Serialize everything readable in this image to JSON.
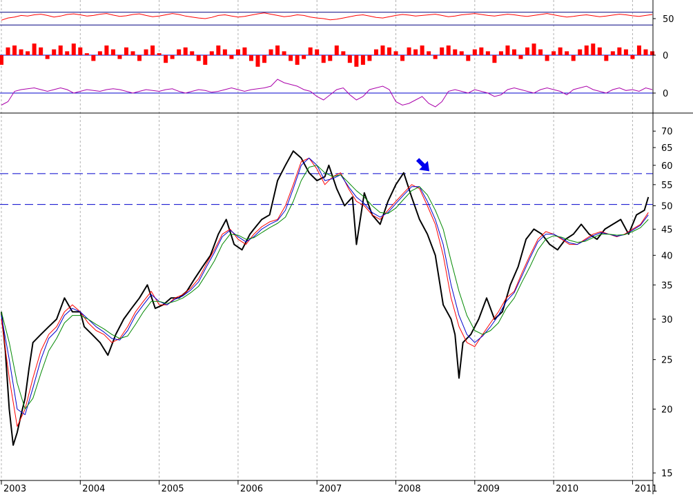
{
  "chart_data": {
    "type": "line",
    "panels": [
      {
        "name": "oscillator-1",
        "color": "#ff0000",
        "ref_lines": [
          30,
          70
        ],
        "ylim": [
          0,
          100
        ],
        "tick_label": "50",
        "values": [
          45,
          52,
          55,
          60,
          58,
          62,
          64,
          60,
          55,
          58,
          63,
          65,
          62,
          58,
          60,
          64,
          66,
          61,
          57,
          59,
          63,
          65,
          60,
          56,
          58,
          62,
          66,
          63,
          58,
          55,
          52,
          50,
          54,
          60,
          62,
          58,
          55,
          57,
          61,
          65,
          68,
          64,
          60,
          56,
          58,
          62,
          60,
          55,
          52,
          50,
          46,
          48,
          52,
          56,
          60,
          62,
          58,
          54,
          52,
          56,
          60,
          63,
          61,
          58,
          60,
          62,
          64,
          60,
          56,
          58,
          62,
          64,
          66,
          63,
          60,
          58,
          61,
          64,
          62,
          59,
          57,
          60,
          63,
          66,
          62,
          58,
          55,
          57,
          60,
          62,
          59,
          56,
          58,
          61,
          64,
          62,
          59,
          57,
          60,
          63
        ]
      },
      {
        "name": "histogram",
        "color": "#ff0000",
        "tick_label": "0",
        "ylim": [
          -1,
          1
        ],
        "values": [
          -0.5,
          0.4,
          0.5,
          0.3,
          0.2,
          0.6,
          0.4,
          -0.2,
          0.3,
          0.5,
          0.2,
          0.6,
          0.4,
          0.1,
          -0.3,
          0.2,
          0.5,
          0.3,
          -0.2,
          0.4,
          0.2,
          -0.3,
          0.3,
          0.5,
          0.1,
          -0.4,
          -0.2,
          0.3,
          0.4,
          0.2,
          -0.3,
          -0.5,
          0.2,
          0.5,
          0.3,
          -0.2,
          0.3,
          0.4,
          -0.3,
          -0.6,
          -0.4,
          0.3,
          0.5,
          0.2,
          -0.3,
          -0.5,
          -0.2,
          0.4,
          0.3,
          -0.4,
          -0.3,
          0.5,
          0.2,
          -0.4,
          -0.6,
          -0.5,
          -0.3,
          0.3,
          0.5,
          0.4,
          0.2,
          -0.3,
          0.4,
          0.3,
          0.5,
          0.2,
          -0.2,
          0.4,
          0.5,
          0.3,
          0.2,
          -0.3,
          0.3,
          0.4,
          0.2,
          -0.4,
          0.2,
          0.5,
          0.3,
          -0.2,
          0.4,
          0.6,
          0.3,
          -0.3,
          0.2,
          0.4,
          0.2,
          -0.3,
          0.3,
          0.5,
          0.6,
          0.4,
          -0.3,
          0.2,
          0.4,
          0.3,
          -0.2,
          0.5,
          0.3,
          0.2
        ]
      },
      {
        "name": "oscillator-2",
        "color": "#aa00aa",
        "ref_line": 0,
        "tick_label": "0",
        "ylim": [
          -1,
          1
        ],
        "values": [
          -0.7,
          -0.5,
          0.1,
          0.2,
          0.25,
          0.3,
          0.2,
          0.1,
          0.2,
          0.3,
          0.2,
          0.0,
          0.1,
          0.2,
          0.15,
          0.1,
          0.2,
          0.25,
          0.2,
          0.1,
          0.0,
          0.1,
          0.2,
          0.15,
          0.1,
          0.2,
          0.25,
          0.1,
          0.0,
          0.1,
          0.2,
          0.15,
          0.05,
          0.1,
          0.2,
          0.3,
          0.2,
          0.1,
          0.2,
          0.25,
          0.3,
          0.4,
          0.8,
          0.6,
          0.5,
          0.4,
          0.2,
          0.1,
          -0.2,
          -0.4,
          -0.1,
          0.2,
          0.3,
          -0.1,
          -0.4,
          -0.2,
          0.2,
          0.3,
          0.4,
          0.2,
          -0.5,
          -0.7,
          -0.6,
          -0.4,
          -0.2,
          -0.6,
          -0.8,
          -0.5,
          0.1,
          0.2,
          0.1,
          0.0,
          0.2,
          0.1,
          0.0,
          -0.2,
          -0.1,
          0.2,
          0.3,
          0.2,
          0.1,
          0.0,
          0.2,
          0.3,
          0.2,
          0.1,
          -0.1,
          0.2,
          0.3,
          0.4,
          0.2,
          0.1,
          0.0,
          0.2,
          0.3,
          0.15,
          0.2,
          0.1,
          0.3,
          0.2
        ]
      }
    ],
    "main": {
      "scale": "log",
      "ylim": [
        14.5,
        75
      ],
      "y_ticks": [
        15,
        20,
        25,
        30,
        35,
        40,
        45,
        50,
        55,
        60,
        65,
        70
      ],
      "x_ticks": [
        "2003",
        "2004",
        "2005",
        "2006",
        "2007",
        "2008",
        "2009",
        "2010",
        "2011"
      ],
      "x_range": [
        2003.0,
        2011.25
      ],
      "grid": "vertical dashed at year boundaries",
      "ref_lines": [
        {
          "value": 57.8,
          "style": "dashed",
          "color": "#0000cc"
        },
        {
          "value": 50.3,
          "style": "dashed",
          "color": "#0000cc"
        }
      ],
      "arrow": {
        "x": 2008.35,
        "y": 60,
        "color": "#0000ee"
      },
      "series": [
        {
          "color": "#000000",
          "x": [
            2003.0,
            2003.05,
            2003.1,
            2003.15,
            2003.2,
            2003.25,
            2003.3,
            2003.35,
            2003.4,
            2003.5,
            2003.6,
            2003.7,
            2003.8,
            2003.9,
            2004.0,
            2004.05,
            2004.15,
            2004.25,
            2004.35,
            2004.45,
            2004.55,
            2004.65,
            2004.75,
            2004.85,
            2004.95,
            2005.05,
            2005.15,
            2005.25,
            2005.35,
            2005.45,
            2005.55,
            2005.65,
            2005.75,
            2005.85,
            2005.95,
            2006.05,
            2006.15,
            2006.2,
            2006.3,
            2006.4,
            2006.5,
            2006.6,
            2006.7,
            2006.8,
            2006.9,
            2007.0,
            2007.1,
            2007.15,
            2007.25,
            2007.35,
            2007.45,
            2007.5,
            2007.6,
            2007.7,
            2007.8,
            2007.9,
            2008.0,
            2008.1,
            2008.2,
            2008.3,
            2008.4,
            2008.5,
            2008.6,
            2008.7,
            2008.75,
            2008.8,
            2008.85,
            2008.95,
            2009.05,
            2009.15,
            2009.25,
            2009.35,
            2009.45,
            2009.55,
            2009.65,
            2009.75,
            2009.85,
            2009.95,
            2010.05,
            2010.15,
            2010.25,
            2010.35,
            2010.45,
            2010.55,
            2010.65,
            2010.75,
            2010.85,
            2010.95,
            2011.05,
            2011.15,
            2011.2
          ],
          "y": [
            31,
            26,
            20,
            17,
            18,
            19.5,
            21,
            24,
            27,
            28,
            29,
            30,
            33,
            31,
            31,
            29,
            28,
            27,
            25.5,
            28,
            30,
            31.5,
            33,
            35,
            31.5,
            32,
            33,
            33,
            34,
            36,
            38,
            40,
            44,
            47,
            42,
            41,
            44,
            45,
            47,
            48,
            56,
            60,
            64,
            62,
            58,
            56,
            57,
            60,
            54,
            50,
            52,
            42,
            53,
            48,
            46,
            51,
            55,
            58,
            52,
            47,
            44,
            40,
            32,
            30,
            28,
            23,
            27,
            28,
            30,
            33,
            30,
            31,
            35,
            38,
            43,
            45,
            44,
            42,
            41,
            43,
            44,
            46,
            44,
            43,
            45,
            46,
            47,
            44,
            48,
            49,
            52
          ]
        },
        {
          "color": "#ff0000",
          "x": [
            2003.0,
            2003.1,
            2003.2,
            2003.3,
            2003.4,
            2003.5,
            2003.6,
            2003.7,
            2003.8,
            2003.9,
            2004.0,
            2004.1,
            2004.2,
            2004.3,
            2004.4,
            2004.5,
            2004.6,
            2004.7,
            2004.8,
            2004.9,
            2005.0,
            2005.1,
            2005.2,
            2005.3,
            2005.4,
            2005.5,
            2005.6,
            2005.7,
            2005.8,
            2005.9,
            2006.0,
            2006.1,
            2006.2,
            2006.3,
            2006.4,
            2006.5,
            2006.6,
            2006.7,
            2006.8,
            2006.9,
            2007.0,
            2007.1,
            2007.2,
            2007.3,
            2007.4,
            2007.5,
            2007.6,
            2007.7,
            2007.8,
            2007.9,
            2008.0,
            2008.1,
            2008.2,
            2008.3,
            2008.4,
            2008.5,
            2008.6,
            2008.7,
            2008.8,
            2008.9,
            2009.0,
            2009.1,
            2009.2,
            2009.3,
            2009.4,
            2009.5,
            2009.6,
            2009.7,
            2009.8,
            2009.9,
            2010.0,
            2010.1,
            2010.2,
            2010.3,
            2010.4,
            2010.5,
            2010.6,
            2010.7,
            2010.8,
            2010.9,
            2011.0,
            2011.1,
            2011.2
          ],
          "y": [
            30,
            23,
            18.5,
            20,
            23,
            26,
            28,
            29,
            31,
            32,
            31,
            29.5,
            28.5,
            28,
            27,
            27.5,
            29,
            31,
            32.5,
            34,
            32,
            32,
            33,
            33.5,
            34.5,
            36,
            38.5,
            41,
            44,
            45,
            43,
            42,
            44,
            45.5,
            46.5,
            47,
            50,
            55,
            61,
            62,
            59,
            55,
            57,
            58,
            54,
            51,
            50,
            48,
            47,
            49,
            51,
            53,
            55,
            54,
            50,
            46,
            40,
            33,
            29,
            27,
            26.5,
            28,
            29.5,
            31,
            33,
            34,
            37,
            40,
            43,
            44.5,
            44,
            43,
            42,
            42,
            43,
            44,
            44.5,
            44,
            43.5,
            44,
            45,
            46,
            48.5
          ]
        },
        {
          "color": "#0000cc",
          "x": [
            2003.0,
            2003.1,
            2003.2,
            2003.3,
            2003.4,
            2003.5,
            2003.6,
            2003.7,
            2003.8,
            2003.9,
            2004.0,
            2004.1,
            2004.2,
            2004.3,
            2004.4,
            2004.5,
            2004.6,
            2004.7,
            2004.8,
            2004.9,
            2005.0,
            2005.1,
            2005.2,
            2005.3,
            2005.4,
            2005.5,
            2005.6,
            2005.7,
            2005.8,
            2005.9,
            2006.0,
            2006.1,
            2006.2,
            2006.3,
            2006.4,
            2006.5,
            2006.6,
            2006.7,
            2006.8,
            2006.9,
            2007.0,
            2007.1,
            2007.2,
            2007.3,
            2007.4,
            2007.5,
            2007.6,
            2007.7,
            2007.8,
            2007.9,
            2008.0,
            2008.1,
            2008.2,
            2008.3,
            2008.4,
            2008.5,
            2008.6,
            2008.7,
            2008.8,
            2008.9,
            2009.0,
            2009.1,
            2009.2,
            2009.3,
            2009.4,
            2009.5,
            2009.6,
            2009.7,
            2009.8,
            2009.9,
            2010.0,
            2010.1,
            2010.2,
            2010.3,
            2010.4,
            2010.5,
            2010.6,
            2010.7,
            2010.8,
            2010.9,
            2011.0,
            2011.1,
            2011.2
          ],
          "y": [
            30.5,
            25,
            20,
            19.5,
            22,
            25,
            27.5,
            28.5,
            30.5,
            31.5,
            31,
            30,
            29,
            28.3,
            27.5,
            27.3,
            28.5,
            30.5,
            32,
            33.5,
            32.5,
            32,
            32.8,
            33.3,
            34.2,
            35.5,
            38,
            40.5,
            43.5,
            44.8,
            43.5,
            42.5,
            43.5,
            45,
            46,
            46.8,
            49,
            54,
            60,
            62,
            60,
            56,
            56.5,
            57.5,
            54.5,
            52,
            50.5,
            48.5,
            47.5,
            48.5,
            50.5,
            52.5,
            54.5,
            54.5,
            51,
            47,
            42,
            35,
            30.5,
            28,
            27,
            27.8,
            29,
            30.5,
            32.5,
            33.8,
            36.5,
            39.5,
            42.5,
            44,
            44,
            43.2,
            42.3,
            42,
            42.8,
            43.7,
            44.3,
            44,
            43.6,
            43.9,
            44.8,
            45.8,
            48
          ]
        },
        {
          "color": "#008800",
          "x": [
            2003.0,
            2003.1,
            2003.2,
            2003.3,
            2003.4,
            2003.5,
            2003.6,
            2003.7,
            2003.8,
            2003.9,
            2004.0,
            2004.1,
            2004.2,
            2004.3,
            2004.4,
            2004.5,
            2004.6,
            2004.7,
            2004.8,
            2004.9,
            2005.0,
            2005.1,
            2005.2,
            2005.3,
            2005.4,
            2005.5,
            2005.6,
            2005.7,
            2005.8,
            2005.9,
            2006.0,
            2006.1,
            2006.2,
            2006.3,
            2006.4,
            2006.5,
            2006.6,
            2006.7,
            2006.8,
            2006.9,
            2007.0,
            2007.1,
            2007.2,
            2007.3,
            2007.4,
            2007.5,
            2007.6,
            2007.7,
            2007.8,
            2007.9,
            2008.0,
            2008.1,
            2008.2,
            2008.3,
            2008.4,
            2008.5,
            2008.6,
            2008.7,
            2008.8,
            2008.9,
            2009.0,
            2009.1,
            2009.2,
            2009.3,
            2009.4,
            2009.5,
            2009.6,
            2009.7,
            2009.8,
            2009.9,
            2010.0,
            2010.1,
            2010.2,
            2010.3,
            2010.4,
            2010.5,
            2010.6,
            2010.7,
            2010.8,
            2010.9,
            2011.0,
            2011.1,
            2011.2
          ],
          "y": [
            31,
            27,
            22.5,
            20,
            21,
            23.5,
            26,
            27.5,
            29.5,
            30.5,
            30.5,
            30,
            29.3,
            28.7,
            28,
            27.5,
            27.8,
            29.3,
            31,
            32.5,
            32.5,
            32.2,
            32.5,
            33,
            33.8,
            34.8,
            36.8,
            39,
            42,
            44,
            43.8,
            43,
            43.3,
            44.3,
            45.3,
            46.2,
            47.5,
            51,
            56,
            59.5,
            60,
            58,
            57,
            57.5,
            55.5,
            53.5,
            52,
            50,
            48.5,
            48.3,
            49.5,
            51.5,
            53.5,
            54.5,
            52.5,
            49,
            45,
            39,
            34,
            30.5,
            28.5,
            28,
            28.5,
            29.5,
            31.5,
            33,
            35.5,
            38,
            41,
            43,
            43.7,
            43.4,
            42.8,
            42.4,
            42.6,
            43.3,
            44,
            44,
            43.8,
            43.9,
            44.5,
            45.3,
            47
          ]
        }
      ]
    }
  }
}
